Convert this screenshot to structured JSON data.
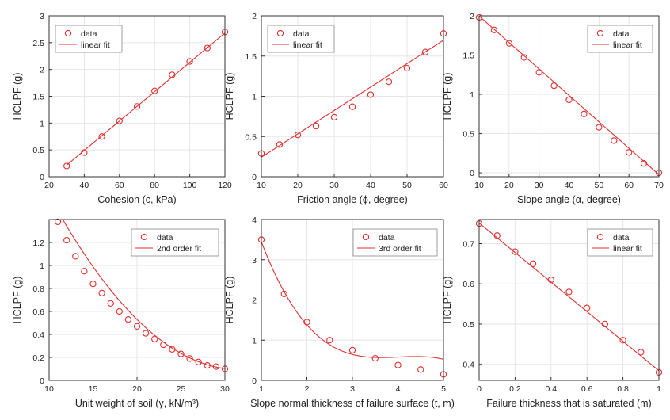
{
  "colors": {
    "series": "#e03030",
    "axis": "#333333",
    "grid": "#e6e6e6",
    "background": "#ffffff"
  },
  "chart_data": [
    {
      "type": "scatter",
      "title": "",
      "xlabel": "Cohesion (c, kPa)",
      "ylabel": "HCLPF (g)",
      "xlim": [
        20,
        120
      ],
      "ylim": [
        0,
        3
      ],
      "xticks": [
        20,
        40,
        60,
        80,
        100,
        120
      ],
      "xtick_labels": [
        "20",
        "40",
        "60",
        "80",
        "100",
        "120"
      ],
      "yticks": [
        0,
        0.5,
        1,
        1.5,
        2,
        2.5,
        3
      ],
      "ytick_labels": [
        "0",
        "0.5",
        "1",
        "1.5",
        "2",
        "2.5",
        "3"
      ],
      "grid": true,
      "legend": "top-left",
      "series": [
        {
          "name": "data",
          "kind": "markers",
          "x": [
            30,
            40,
            50,
            60,
            70,
            80,
            90,
            100,
            110,
            120
          ],
          "y": [
            0.2,
            0.45,
            0.75,
            1.04,
            1.31,
            1.6,
            1.9,
            2.15,
            2.4,
            2.7
          ]
        },
        {
          "name": "linear fit",
          "kind": "line",
          "fit": "poly",
          "coef": [
            -0.604,
            0.02737
          ],
          "range": [
            30,
            120
          ]
        }
      ]
    },
    {
      "type": "scatter",
      "title": "",
      "xlabel": "Friction angle (ϕ, degree)",
      "ylabel": "HCLPF (g)",
      "xlim": [
        10,
        60
      ],
      "ylim": [
        0,
        2
      ],
      "xticks": [
        10,
        20,
        30,
        40,
        50,
        60
      ],
      "xtick_labels": [
        "10",
        "20",
        "30",
        "40",
        "50",
        "60"
      ],
      "yticks": [
        0,
        0.5,
        1,
        1.5,
        2
      ],
      "ytick_labels": [
        "0",
        "0.5",
        "1",
        "1.5",
        "2"
      ],
      "grid": true,
      "legend": "top-left",
      "series": [
        {
          "name": "data",
          "kind": "markers",
          "x": [
            10,
            15,
            20,
            25,
            30,
            35,
            40,
            45,
            50,
            55,
            60
          ],
          "y": [
            0.29,
            0.4,
            0.52,
            0.63,
            0.74,
            0.87,
            1.02,
            1.18,
            1.35,
            1.55,
            1.78
          ]
        },
        {
          "name": "linear fit",
          "kind": "line",
          "fit": "poly",
          "coef": [
            -0.049,
            0.0291
          ],
          "range": [
            10,
            60
          ]
        }
      ]
    },
    {
      "type": "scatter",
      "title": "",
      "xlabel": "Slope angle (α, degree)",
      "ylabel": "HCLPF (g)",
      "xlim": [
        10,
        70
      ],
      "ylim": [
        -0.05,
        2
      ],
      "xticks": [
        10,
        20,
        30,
        40,
        50,
        60,
        70
      ],
      "xtick_labels": [
        "10",
        "20",
        "30",
        "40",
        "50",
        "60",
        "70"
      ],
      "yticks": [
        0,
        0.5,
        1,
        1.5,
        2
      ],
      "ytick_labels": [
        "0",
        "0.5",
        "1",
        "1.5",
        "2"
      ],
      "grid": true,
      "legend": "top-right",
      "series": [
        {
          "name": "data",
          "kind": "markers",
          "x": [
            10,
            15,
            20,
            25,
            30,
            35,
            40,
            45,
            50,
            55,
            60,
            65,
            70
          ],
          "y": [
            1.98,
            1.82,
            1.65,
            1.47,
            1.28,
            1.11,
            0.93,
            0.75,
            0.58,
            0.41,
            0.26,
            0.12,
            0.0
          ]
        },
        {
          "name": "linear fit",
          "kind": "line",
          "fit": "poly",
          "coef": [
            2.3333,
            -0.03367
          ],
          "range": [
            10,
            70
          ]
        }
      ]
    },
    {
      "type": "scatter",
      "title": "",
      "xlabel": "Unit weight of soil (γ, kN/m³)",
      "ylabel": "HCLPF (g)",
      "xlim": [
        10,
        30
      ],
      "ylim": [
        0,
        1.4
      ],
      "xticks": [
        10,
        15,
        20,
        25,
        30
      ],
      "xtick_labels": [
        "10",
        "15",
        "20",
        "25",
        "30"
      ],
      "yticks": [
        0,
        0.2,
        0.4,
        0.6,
        0.8,
        1,
        1.2
      ],
      "ytick_labels": [
        "0",
        "0.2",
        "0.4",
        "0.6",
        "0.8",
        "1",
        "1.2"
      ],
      "grid": true,
      "legend": "top-right",
      "series": [
        {
          "name": "data",
          "kind": "markers",
          "x": [
            11,
            12,
            13,
            14,
            15,
            16,
            17,
            18,
            19,
            20,
            21,
            22,
            23,
            24,
            25,
            26,
            27,
            28,
            29,
            30
          ],
          "y": [
            1.38,
            1.22,
            1.08,
            0.95,
            0.84,
            0.76,
            0.67,
            0.6,
            0.53,
            0.47,
            0.41,
            0.36,
            0.31,
            0.27,
            0.23,
            0.19,
            0.16,
            0.13,
            0.12,
            0.1
          ]
        },
        {
          "name": "2nd order fit",
          "kind": "line",
          "fit": "poly",
          "coef": [
            3.3425,
            -0.2058,
            0.00326
          ],
          "range": [
            11,
            30
          ]
        }
      ]
    },
    {
      "type": "scatter",
      "title": "",
      "xlabel": "Slope normal thickness of failure surface (t, m)",
      "ylabel": "HCLPF (g)",
      "xlim": [
        1,
        5
      ],
      "ylim": [
        0,
        4
      ],
      "xticks": [
        1,
        2,
        3,
        4,
        5
      ],
      "xtick_labels": [
        "1",
        "2",
        "3",
        "4",
        "5"
      ],
      "yticks": [
        0,
        1,
        2,
        3,
        4
      ],
      "ytick_labels": [
        "0",
        "1",
        "2",
        "3",
        "4"
      ],
      "grid": true,
      "legend": "top-right",
      "series": [
        {
          "name": "data",
          "kind": "markers",
          "x": [
            1,
            1.5,
            2,
            2.5,
            3,
            3.5,
            4,
            4.5,
            5
          ],
          "y": [
            3.5,
            2.15,
            1.45,
            1.0,
            0.75,
            0.55,
            0.38,
            0.27,
            0.15
          ]
        },
        {
          "name": "3rd order fit",
          "kind": "line",
          "fit": "poly",
          "coef": [
            7.5,
            -5.27,
            1.325,
            -0.11
          ],
          "range": [
            1,
            5
          ]
        }
      ]
    },
    {
      "type": "scatter",
      "title": "",
      "xlabel": "Failure thickness that is saturated (m)",
      "ylabel": "HCLPF (g)",
      "xlim": [
        0,
        1
      ],
      "ylim": [
        0.36,
        0.76
      ],
      "xticks": [
        0,
        0.2,
        0.4,
        0.6,
        0.8,
        1
      ],
      "xtick_labels": [
        "0",
        "0.2",
        "0.4",
        "0.6",
        "0.8",
        "1"
      ],
      "yticks": [
        0.4,
        0.5,
        0.6,
        0.7
      ],
      "ytick_labels": [
        "0.4",
        "0.5",
        "0.6",
        "0.7"
      ],
      "grid": true,
      "legend": "top-right",
      "series": [
        {
          "name": "data",
          "kind": "markers",
          "x": [
            0,
            0.1,
            0.2,
            0.3,
            0.4,
            0.5,
            0.6,
            0.7,
            0.8,
            0.9,
            1
          ],
          "y": [
            0.75,
            0.72,
            0.68,
            0.65,
            0.61,
            0.58,
            0.54,
            0.5,
            0.46,
            0.43,
            0.38
          ]
        },
        {
          "name": "linear fit",
          "kind": "line",
          "fit": "poly",
          "coef": [
            0.7513,
            -0.3673
          ],
          "range": [
            0,
            1
          ]
        }
      ]
    }
  ]
}
